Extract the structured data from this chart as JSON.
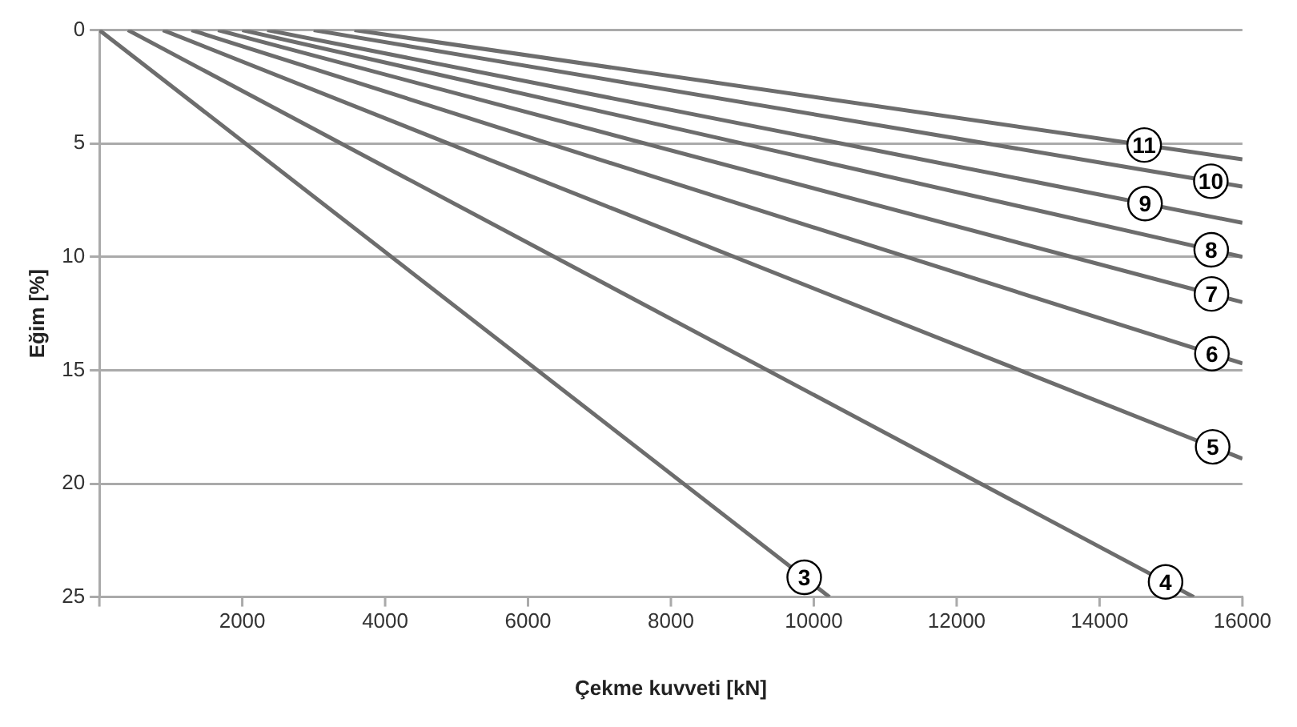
{
  "chart_data": {
    "type": "line",
    "xlabel": "Çekme kuvveti [kN]",
    "ylabel": "Eğim [%]",
    "xlim": [
      0,
      16000
    ],
    "xticks": [
      {
        "value": 0,
        "label": null
      },
      2000,
      4000,
      6000,
      8000,
      10000,
      12000,
      14000,
      16000
    ],
    "ylim": [
      25,
      0
    ],
    "yticks": [
      0,
      5,
      10,
      15,
      20,
      25
    ],
    "grid": "y",
    "legend": false,
    "marker": "none",
    "line_style": "solid",
    "series": [
      {
        "name": "3",
        "color": "#6d6d6d",
        "x": [
          0,
          10220
        ],
        "values": [
          0,
          25
        ]
      },
      {
        "name": "4",
        "color": "#6d6d6d",
        "x": [
          400,
          15320
        ],
        "values": [
          0,
          25
        ]
      },
      {
        "name": "5",
        "color": "#6d6d6d",
        "x": [
          890,
          16000
        ],
        "values": [
          0,
          18.9
        ]
      },
      {
        "name": "6",
        "color": "#6d6d6d",
        "x": [
          1290,
          16000
        ],
        "values": [
          0,
          14.7
        ]
      },
      {
        "name": "7",
        "color": "#6d6d6d",
        "x": [
          1660,
          16000
        ],
        "values": [
          0,
          12
        ]
      },
      {
        "name": "8",
        "color": "#6d6d6d",
        "x": [
          2000,
          16000
        ],
        "values": [
          0,
          10
        ]
      },
      {
        "name": "9",
        "color": "#6d6d6d",
        "x": [
          2350,
          16000
        ],
        "values": [
          0,
          8.5
        ]
      },
      {
        "name": "10",
        "color": "#6d6d6d",
        "x": [
          3000,
          16000
        ],
        "values": [
          0,
          6.9
        ]
      },
      {
        "name": "11",
        "color": "#6d6d6d",
        "x": [
          3570,
          16000
        ],
        "values": [
          0,
          5.7
        ]
      }
    ]
  }
}
